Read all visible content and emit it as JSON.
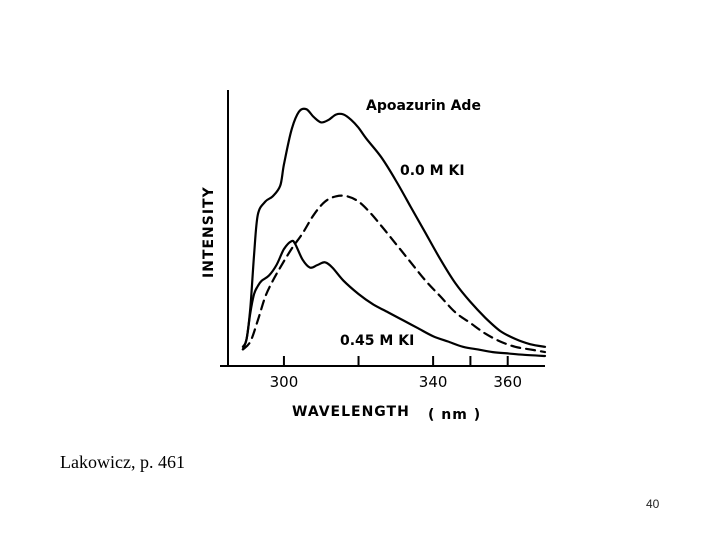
{
  "slide": {
    "citation": "Lakowicz, p. 461",
    "page_number": "40"
  },
  "chart_data": {
    "type": "line",
    "xlabel": "WAVELENGTH",
    "xunit": "( nm )",
    "ylabel": "INTENSITY",
    "xlim": [
      285,
      370
    ],
    "ylim": [
      0,
      1
    ],
    "x_tick_values": [
      300,
      320,
      340,
      350,
      360
    ],
    "x_tick_labels": [
      {
        "value": 300,
        "label": "300"
      },
      {
        "value": 340,
        "label": "340"
      },
      {
        "value": 360,
        "label": "360"
      }
    ],
    "annotations": {
      "title": "Apoazurin Ade",
      "top_curve": "0.0 M KI",
      "bottom_curve": "0.45 M KI"
    },
    "series": [
      {
        "style": "solid",
        "x": [
          289,
          290,
          291,
          292,
          293,
          295,
          297,
          299,
          300,
          302,
          304,
          306,
          308,
          310,
          312,
          314,
          316,
          318,
          320,
          322,
          326,
          330,
          334,
          338,
          342,
          346,
          350,
          354,
          358,
          362,
          366,
          370
        ],
        "y": [
          0.05,
          0.08,
          0.2,
          0.4,
          0.55,
          0.6,
          0.62,
          0.66,
          0.74,
          0.87,
          0.94,
          0.95,
          0.92,
          0.9,
          0.91,
          0.93,
          0.93,
          0.91,
          0.88,
          0.84,
          0.77,
          0.68,
          0.58,
          0.48,
          0.38,
          0.29,
          0.22,
          0.16,
          0.11,
          0.08,
          0.06,
          0.05
        ]
      },
      {
        "style": "dashed",
        "x": [
          289,
          291,
          293,
          295,
          297,
          299,
          302,
          305,
          308,
          311,
          314,
          317,
          320,
          323,
          326,
          330,
          334,
          338,
          342,
          346,
          350,
          354,
          358,
          362,
          366,
          370
        ],
        "y": [
          0.04,
          0.07,
          0.15,
          0.24,
          0.3,
          0.35,
          0.42,
          0.48,
          0.55,
          0.6,
          0.62,
          0.62,
          0.6,
          0.56,
          0.51,
          0.44,
          0.37,
          0.3,
          0.24,
          0.18,
          0.14,
          0.1,
          0.07,
          0.05,
          0.04,
          0.03
        ]
      },
      {
        "style": "solid",
        "x": [
          289,
          290,
          291,
          292,
          293,
          294,
          296,
          298,
          300,
          302,
          303,
          305,
          307,
          309,
          311,
          313,
          316,
          320,
          324,
          328,
          332,
          336,
          340,
          344,
          348,
          352,
          356,
          360,
          364,
          370
        ],
        "y": [
          0.04,
          0.08,
          0.18,
          0.25,
          0.28,
          0.3,
          0.32,
          0.36,
          0.42,
          0.45,
          0.44,
          0.38,
          0.35,
          0.36,
          0.37,
          0.35,
          0.3,
          0.25,
          0.21,
          0.18,
          0.15,
          0.12,
          0.09,
          0.07,
          0.05,
          0.04,
          0.03,
          0.025,
          0.02,
          0.015
        ]
      }
    ]
  }
}
